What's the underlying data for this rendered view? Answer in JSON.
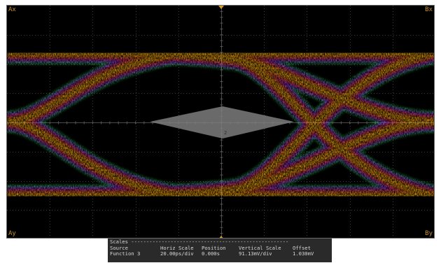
{
  "cursors": {
    "ax": "Ax",
    "bx": "Bx",
    "ay": "Ay",
    "by": "By"
  },
  "mask_region_label": "2",
  "scales": {
    "title": "Scales ----------------------------------------------------",
    "headers": {
      "source": "Source",
      "horiz_scale": "Horiz Scale",
      "position": "Position",
      "vertical_scale": "Vertical Scale",
      "offset": "Offset"
    },
    "row": {
      "source": "Function 3",
      "horiz_scale": "20.00ps/div",
      "position": "0.000s",
      "vertical_scale": "91.13mV/div",
      "offset": "1.030mV"
    }
  },
  "colors": {
    "background": "#000000",
    "grid": "#3a3a3a",
    "cursor_marker": "#d49a2a",
    "mask": "#7c7c7c",
    "heat_core": "#ffae0c",
    "heat_mid": "#ff6a1a",
    "heat_hot": "#e8206e",
    "heat_cool": "#7a3cff",
    "heat_edge": "#28c838"
  }
}
